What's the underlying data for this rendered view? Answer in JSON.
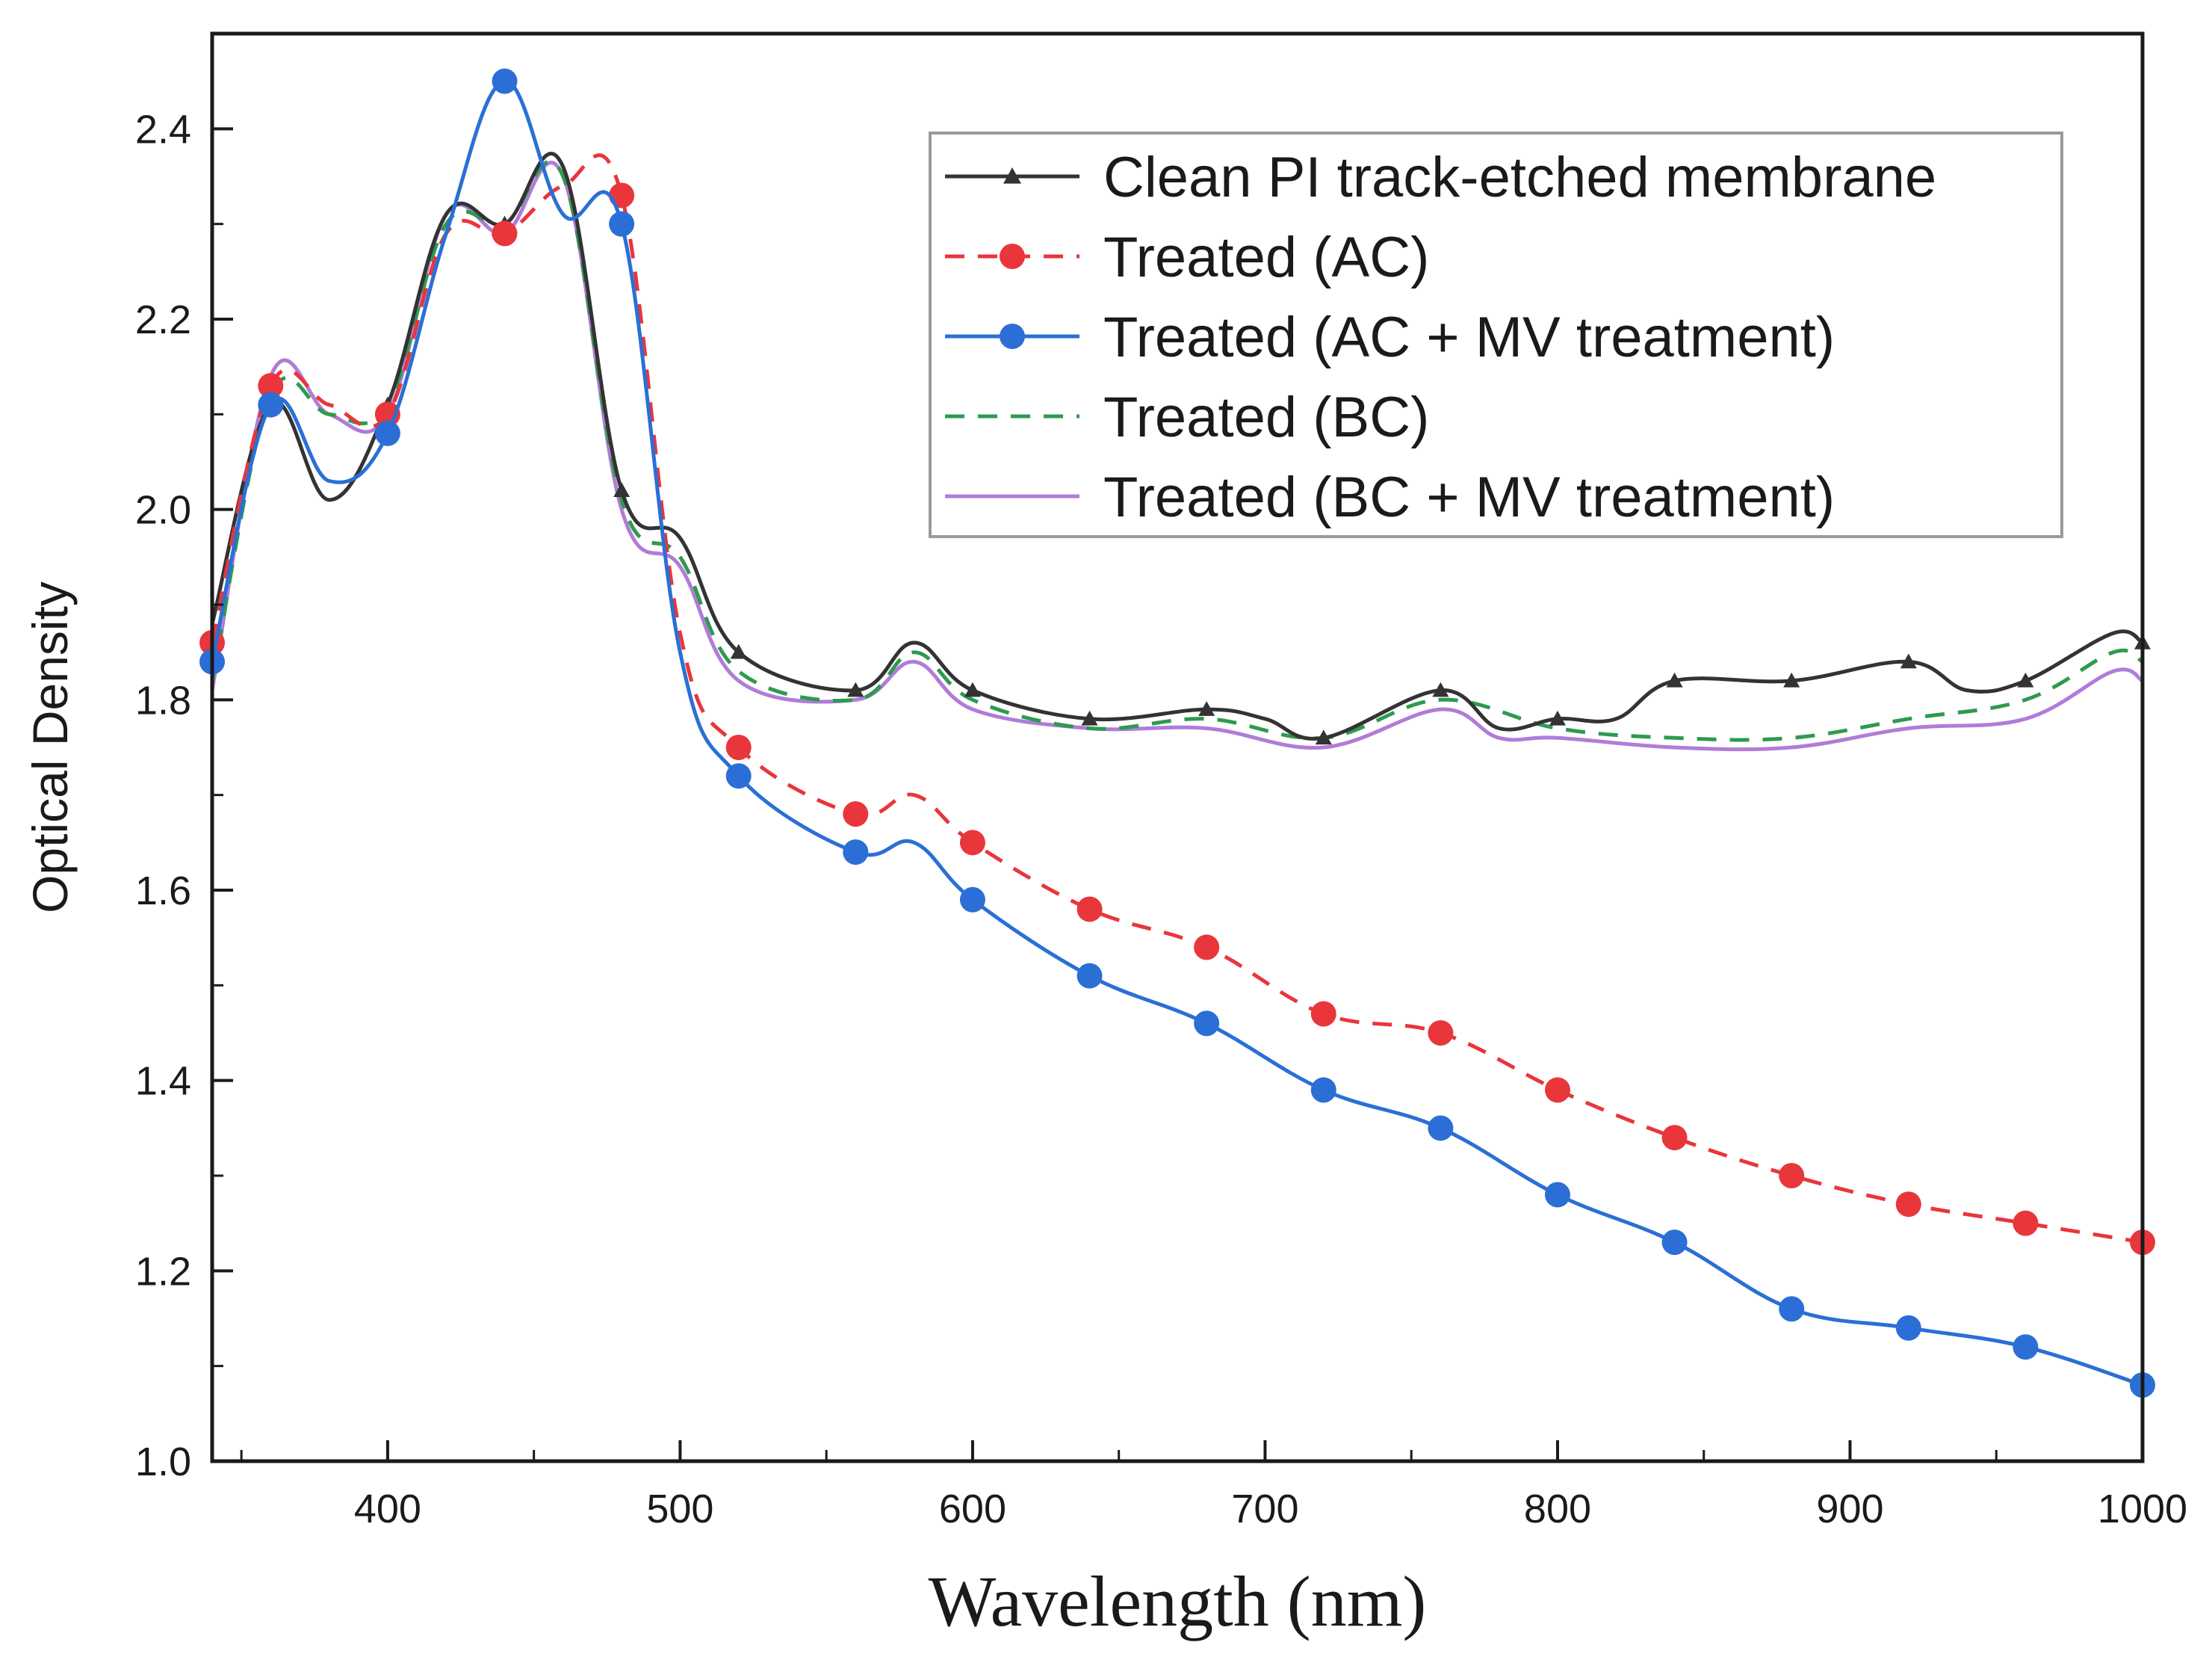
{
  "chart_data": {
    "type": "line",
    "title": "",
    "xlabel": "Wavelength (nm)",
    "ylabel": "Optical Density",
    "xlim": [
      340,
      1000
    ],
    "ylim": [
      1.0,
      2.5
    ],
    "x_ticks": [
      400,
      500,
      600,
      700,
      800,
      900,
      1000
    ],
    "x_tick_labels": [
      "400",
      "500",
      "600",
      "700",
      "800",
      "900",
      "1000"
    ],
    "y_ticks": [
      1.0,
      1.2,
      1.4,
      1.6,
      1.8,
      2.0,
      2.2,
      2.4
    ],
    "y_tick_labels": [
      "1.0",
      "1.2",
      "1.4",
      "1.6",
      "1.8",
      "2.0",
      "2.2",
      "2.4"
    ],
    "grid": false,
    "legend_position": "top-right",
    "series": [
      {
        "name": "Clean PI track-etched membrane",
        "color": "#333333",
        "line": "solid",
        "marker": "triangle",
        "x": [
          340,
          360,
          380,
          400,
          420,
          440,
          460,
          480,
          500,
          520,
          560,
          580,
          600,
          640,
          680,
          700,
          720,
          760,
          780,
          800,
          820,
          840,
          880,
          920,
          940,
          960,
          990,
          1000
        ],
        "y": [
          1.88,
          2.11,
          2.01,
          2.11,
          2.31,
          2.3,
          2.36,
          2.02,
          1.97,
          1.85,
          1.81,
          1.86,
          1.81,
          1.78,
          1.79,
          1.78,
          1.76,
          1.81,
          1.77,
          1.78,
          1.78,
          1.82,
          1.82,
          1.84,
          1.81,
          1.82,
          1.87,
          1.86
        ]
      },
      {
        "name": "Treated (AC)",
        "color": "#e8363b",
        "line": "dashed",
        "marker": "circle",
        "x": [
          340,
          360,
          380,
          400,
          420,
          440,
          460,
          480,
          500,
          520,
          560,
          580,
          600,
          640,
          680,
          720,
          760,
          800,
          840,
          880,
          920,
          960,
          1000
        ],
        "y": [
          1.86,
          2.13,
          2.11,
          2.1,
          2.29,
          2.29,
          2.34,
          2.33,
          1.87,
          1.75,
          1.68,
          1.7,
          1.65,
          1.58,
          1.54,
          1.47,
          1.45,
          1.39,
          1.34,
          1.3,
          1.27,
          1.25,
          1.23
        ]
      },
      {
        "name": "Treated (AC + MV treatment)",
        "color": "#2b6fd6",
        "line": "solid",
        "marker": "circle",
        "x": [
          340,
          360,
          380,
          400,
          420,
          440,
          460,
          480,
          500,
          520,
          560,
          580,
          600,
          640,
          680,
          720,
          760,
          800,
          840,
          880,
          920,
          960,
          1000
        ],
        "y": [
          1.84,
          2.11,
          2.03,
          2.08,
          2.29,
          2.45,
          2.31,
          2.3,
          1.85,
          1.72,
          1.64,
          1.65,
          1.59,
          1.51,
          1.46,
          1.39,
          1.35,
          1.28,
          1.23,
          1.16,
          1.14,
          1.12,
          1.08
        ]
      },
      {
        "name": "Treated (BC)",
        "color": "#2e9a4e",
        "line": "dashed",
        "marker": "none",
        "x": [
          340,
          360,
          380,
          400,
          420,
          440,
          460,
          480,
          500,
          520,
          560,
          580,
          600,
          640,
          680,
          720,
          760,
          800,
          840,
          880,
          920,
          960,
          990,
          1000
        ],
        "y": [
          1.82,
          2.12,
          2.1,
          2.11,
          2.3,
          2.3,
          2.35,
          2.01,
          1.95,
          1.83,
          1.8,
          1.85,
          1.8,
          1.77,
          1.78,
          1.76,
          1.8,
          1.77,
          1.76,
          1.76,
          1.78,
          1.8,
          1.85,
          1.84
        ]
      },
      {
        "name": "Treated (BC + MV treatment)",
        "color": "#b07cd8",
        "line": "solid",
        "marker": "none",
        "x": [
          340,
          360,
          380,
          400,
          420,
          440,
          460,
          480,
          500,
          520,
          560,
          580,
          600,
          640,
          680,
          720,
          760,
          780,
          800,
          840,
          880,
          920,
          960,
          990,
          1000
        ],
        "y": [
          1.81,
          2.14,
          2.1,
          2.1,
          2.31,
          2.29,
          2.35,
          2.0,
          1.94,
          1.82,
          1.8,
          1.84,
          1.79,
          1.77,
          1.77,
          1.75,
          1.79,
          1.76,
          1.76,
          1.75,
          1.75,
          1.77,
          1.78,
          1.83,
          1.82
        ]
      }
    ]
  }
}
